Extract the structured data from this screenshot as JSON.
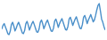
{
  "chart_data": {
    "type": "line",
    "color": "#4a8fc9",
    "tick_labels": false,
    "grid": false,
    "ylim": [
      20,
      100
    ],
    "values": [
      40,
      48,
      52,
      45,
      38,
      30,
      28,
      35,
      50,
      55,
      47,
      36,
      42,
      50,
      55,
      48,
      40,
      32,
      30,
      37,
      52,
      57,
      49,
      38,
      45,
      52,
      57,
      50,
      42,
      34,
      33,
      40,
      55,
      60,
      52,
      41,
      48,
      55,
      60,
      52,
      44,
      36,
      35,
      42,
      58,
      62,
      54,
      44,
      52,
      58,
      63,
      55,
      47,
      39,
      38,
      46,
      62,
      66,
      58,
      48,
      55,
      62,
      67,
      58,
      50,
      42,
      41,
      50,
      66,
      70,
      62,
      52,
      60,
      66,
      72,
      64,
      56,
      60,
      70,
      82,
      92,
      96,
      80,
      62,
      55,
      45,
      38
    ]
  }
}
